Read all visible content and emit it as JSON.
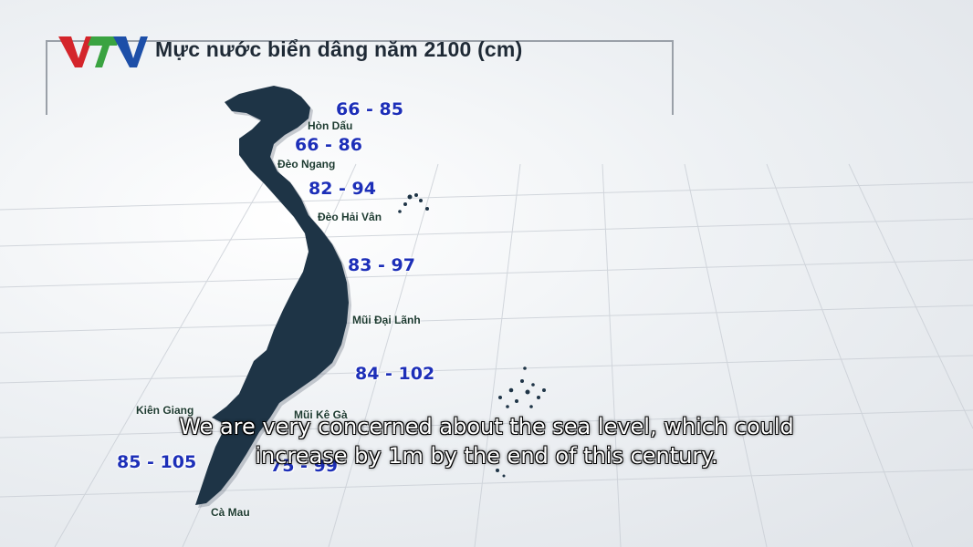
{
  "header": {
    "channel_logo": "VTV",
    "title": "Mực nước biển dâng năm 2100 (cm)"
  },
  "map": {
    "ranges": [
      "66 - 85",
      "66 - 86",
      "82 - 94",
      "83 - 97",
      "84 - 102",
      "85 - 105",
      "75 - 99"
    ],
    "places": [
      "Hòn Dấu",
      "Đèo Ngang",
      "Đèo Hải Vân",
      "Mũi Đại Lãnh",
      "Mũi Kê Gà",
      "Kiên Giang",
      "Cà Mau"
    ]
  },
  "subtitle": {
    "line1": "We are very concerned about the sea level, which could",
    "line2": "increase by 1m by the end of this century."
  },
  "colors": {
    "map_fill": "#1e3446",
    "range_text": "#1d2fb8",
    "logo_red": "#d4252b",
    "logo_green": "#3aa341",
    "logo_blue": "#1d4fa8"
  }
}
